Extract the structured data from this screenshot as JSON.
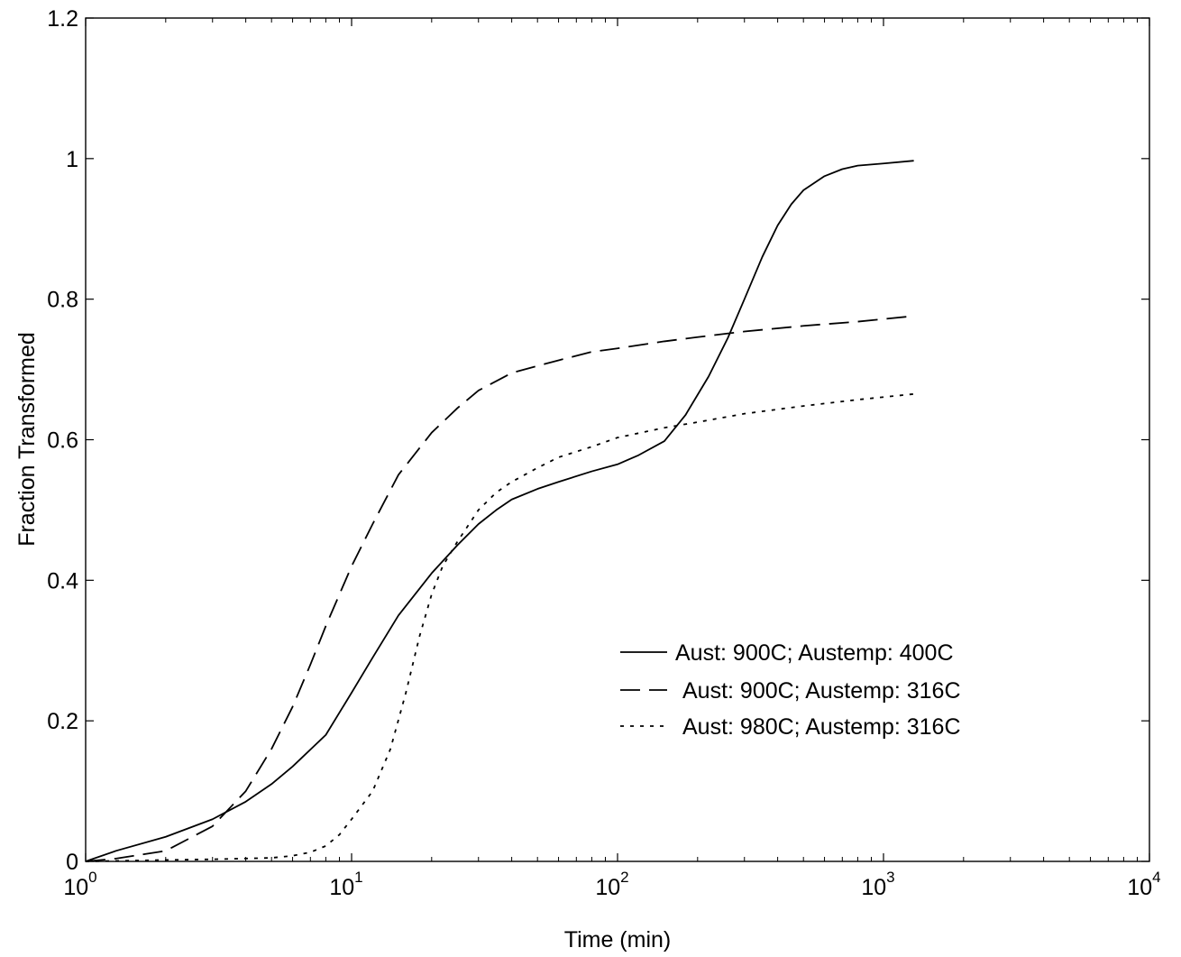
{
  "chart_data": {
    "type": "line",
    "title": "",
    "xlabel": "Time (min)",
    "ylabel": "Fraction Transformed",
    "xscale": "log",
    "xlim": [
      1,
      10000
    ],
    "ylim": [
      0,
      1.2
    ],
    "grid": false,
    "legend_position": "lower-right",
    "x_ticks": [
      {
        "value": 1,
        "base": "10",
        "exp": "0"
      },
      {
        "value": 10,
        "base": "10",
        "exp": "1"
      },
      {
        "value": 100,
        "base": "10",
        "exp": "2"
      },
      {
        "value": 1000,
        "base": "10",
        "exp": "3"
      },
      {
        "value": 10000,
        "base": "10",
        "exp": "4"
      }
    ],
    "y_ticks": [
      {
        "value": 0,
        "label": "0"
      },
      {
        "value": 0.2,
        "label": "0.2"
      },
      {
        "value": 0.4,
        "label": "0.4"
      },
      {
        "value": 0.6,
        "label": "0.6"
      },
      {
        "value": 0.8,
        "label": "0.8"
      },
      {
        "value": 1,
        "label": "1"
      },
      {
        "value": 1.2,
        "label": "1.2"
      }
    ],
    "series": [
      {
        "name": "Aust: 900C; Austemp: 400C",
        "style": "solid",
        "color": "#000000",
        "points": [
          [
            1,
            0.0
          ],
          [
            1.3,
            0.015
          ],
          [
            2,
            0.035
          ],
          [
            3,
            0.06
          ],
          [
            4,
            0.085
          ],
          [
            5,
            0.11
          ],
          [
            6,
            0.135
          ],
          [
            8,
            0.18
          ],
          [
            10,
            0.24
          ],
          [
            12,
            0.29
          ],
          [
            15,
            0.35
          ],
          [
            20,
            0.41
          ],
          [
            25,
            0.45
          ],
          [
            30,
            0.48
          ],
          [
            35,
            0.5
          ],
          [
            40,
            0.515
          ],
          [
            50,
            0.53
          ],
          [
            60,
            0.54
          ],
          [
            80,
            0.555
          ],
          [
            100,
            0.565
          ],
          [
            120,
            0.578
          ],
          [
            150,
            0.598
          ],
          [
            180,
            0.635
          ],
          [
            220,
            0.69
          ],
          [
            260,
            0.745
          ],
          [
            300,
            0.8
          ],
          [
            350,
            0.86
          ],
          [
            400,
            0.905
          ],
          [
            450,
            0.935
          ],
          [
            500,
            0.955
          ],
          [
            600,
            0.975
          ],
          [
            700,
            0.985
          ],
          [
            800,
            0.99
          ],
          [
            1000,
            0.993
          ],
          [
            1300,
            0.997
          ]
        ]
      },
      {
        "name": "Aust: 900C; Austemp: 316C",
        "style": "dashed",
        "color": "#000000",
        "points": [
          [
            1,
            0.0
          ],
          [
            1.3,
            0.004
          ],
          [
            2,
            0.015
          ],
          [
            3,
            0.05
          ],
          [
            4,
            0.1
          ],
          [
            5,
            0.16
          ],
          [
            6,
            0.22
          ],
          [
            7,
            0.28
          ],
          [
            8,
            0.335
          ],
          [
            10,
            0.42
          ],
          [
            12,
            0.48
          ],
          [
            15,
            0.55
          ],
          [
            20,
            0.61
          ],
          [
            25,
            0.645
          ],
          [
            30,
            0.67
          ],
          [
            40,
            0.695
          ],
          [
            50,
            0.705
          ],
          [
            60,
            0.713
          ],
          [
            80,
            0.725
          ],
          [
            100,
            0.73
          ],
          [
            150,
            0.74
          ],
          [
            200,
            0.746
          ],
          [
            300,
            0.754
          ],
          [
            500,
            0.762
          ],
          [
            800,
            0.768
          ],
          [
            1300,
            0.776
          ]
        ]
      },
      {
        "name": "Aust: 980C; Austemp: 316C",
        "style": "dotted",
        "color": "#000000",
        "points": [
          [
            1,
            0.0
          ],
          [
            2,
            0.002
          ],
          [
            3,
            0.003
          ],
          [
            5,
            0.005
          ],
          [
            6,
            0.008
          ],
          [
            7,
            0.013
          ],
          [
            8,
            0.022
          ],
          [
            9,
            0.038
          ],
          [
            10,
            0.06
          ],
          [
            12,
            0.1
          ],
          [
            14,
            0.16
          ],
          [
            16,
            0.24
          ],
          [
            18,
            0.32
          ],
          [
            20,
            0.38
          ],
          [
            22,
            0.42
          ],
          [
            25,
            0.455
          ],
          [
            30,
            0.5
          ],
          [
            35,
            0.525
          ],
          [
            40,
            0.54
          ],
          [
            50,
            0.56
          ],
          [
            60,
            0.575
          ],
          [
            80,
            0.59
          ],
          [
            100,
            0.603
          ],
          [
            150,
            0.617
          ],
          [
            200,
            0.625
          ],
          [
            300,
            0.637
          ],
          [
            500,
            0.648
          ],
          [
            800,
            0.657
          ],
          [
            1300,
            0.665
          ]
        ]
      }
    ]
  }
}
